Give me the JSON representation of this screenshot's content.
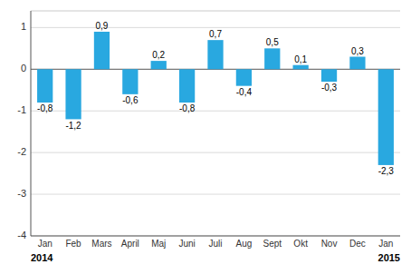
{
  "chart_data": {
    "type": "bar",
    "categories": [
      "Jan",
      "Feb",
      "Mars",
      "April",
      "Maj",
      "Juni",
      "Juli",
      "Aug",
      "Sept",
      "Okt",
      "Nov",
      "Dec",
      "Jan"
    ],
    "values": [
      -0.8,
      -1.2,
      0.9,
      -0.6,
      0.2,
      -0.8,
      0.7,
      -0.4,
      0.5,
      0.1,
      -0.3,
      0.3,
      -2.3
    ],
    "value_labels": [
      "-0,8",
      "-1,2",
      "0,9",
      "-0,6",
      "0,2",
      "-0,8",
      "0,7",
      "-0,4",
      "0,5",
      "0,1",
      "-0,3",
      "0,3",
      "-2,3"
    ],
    "data_labels": true,
    "color": "#29a8e0",
    "ylim": [
      -4,
      1.4
    ],
    "yticks": [
      -4,
      -3,
      -2,
      -1,
      0,
      1
    ],
    "grid": true,
    "annotations": [
      "2014",
      "2015"
    ]
  }
}
